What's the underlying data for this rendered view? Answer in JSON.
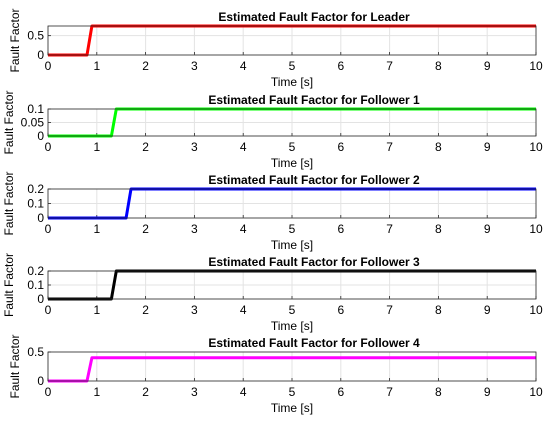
{
  "chart_data": [
    {
      "type": "line",
      "title": "Estimated Fault Factor for Leader",
      "xlabel": "Time [s]",
      "ylabel": "Fault Factor",
      "xlim": [
        0,
        10
      ],
      "ylim": [
        0,
        0.75
      ],
      "xticks": [
        "0",
        "1",
        "2",
        "3",
        "4",
        "5",
        "6",
        "7",
        "8",
        "9",
        "10"
      ],
      "yticks": [
        "0",
        "0.5"
      ],
      "ytick_values": [
        0,
        0.5
      ],
      "grid": true,
      "series": [
        {
          "color": "#ff0000",
          "x": [
            0,
            0.8,
            0.9,
            10
          ],
          "y": [
            0,
            0,
            0.75,
            0.75
          ]
        }
      ]
    },
    {
      "type": "line",
      "title": "Estimated Fault Factor for Follower 1",
      "xlabel": "Time [s]",
      "ylabel": "Fault Factor",
      "xlim": [
        0,
        10
      ],
      "ylim": [
        0,
        0.1
      ],
      "xticks": [
        "0",
        "1",
        "2",
        "3",
        "4",
        "5",
        "6",
        "7",
        "8",
        "9",
        "10"
      ],
      "yticks": [
        "0",
        "0.05",
        "0.1"
      ],
      "ytick_values": [
        0,
        0.05,
        0.1
      ],
      "grid": true,
      "series": [
        {
          "color": "#00ff00",
          "x": [
            0,
            1.3,
            1.4,
            10
          ],
          "y": [
            0,
            0,
            0.1,
            0.1
          ]
        }
      ]
    },
    {
      "type": "line",
      "title": "Estimated Fault Factor for Follower 2",
      "xlabel": "Time [s]",
      "ylabel": "Fault Factor",
      "xlim": [
        0,
        10
      ],
      "ylim": [
        0,
        0.2
      ],
      "xticks": [
        "0",
        "1",
        "2",
        "3",
        "4",
        "5",
        "6",
        "7",
        "8",
        "9",
        "10"
      ],
      "yticks": [
        "0",
        "0.1",
        "0.2"
      ],
      "ytick_values": [
        0,
        0.1,
        0.2
      ],
      "grid": true,
      "series": [
        {
          "color": "#0000ff",
          "x": [
            0,
            1.6,
            1.7,
            10
          ],
          "y": [
            0,
            0,
            0.2,
            0.2
          ]
        }
      ]
    },
    {
      "type": "line",
      "title": "Estimated Fault Factor for Follower 3",
      "xlabel": "Time [s]",
      "ylabel": "Fault Factor",
      "xlim": [
        0,
        10
      ],
      "ylim": [
        0,
        0.2
      ],
      "xticks": [
        "0",
        "1",
        "2",
        "3",
        "4",
        "5",
        "6",
        "7",
        "8",
        "9",
        "10"
      ],
      "yticks": [
        "0",
        "0.1",
        "0.2"
      ],
      "ytick_values": [
        0,
        0.1,
        0.2
      ],
      "grid": true,
      "series": [
        {
          "color": "#000000",
          "x": [
            0,
            1.3,
            1.4,
            10
          ],
          "y": [
            0,
            0,
            0.2,
            0.2
          ]
        }
      ]
    },
    {
      "type": "line",
      "title": "Estimated Fault Factor for Follower 4",
      "xlabel": "Time [s]",
      "ylabel": "Fault Factor",
      "xlim": [
        0,
        10
      ],
      "ylim": [
        0,
        0.5
      ],
      "xticks": [
        "0",
        "1",
        "2",
        "3",
        "4",
        "5",
        "6",
        "7",
        "8",
        "9",
        "10"
      ],
      "yticks": [
        "0",
        "0.5"
      ],
      "ytick_values": [
        0,
        0.5
      ],
      "grid": true,
      "series": [
        {
          "color": "#ff00ff",
          "x": [
            0,
            0.8,
            0.9,
            10
          ],
          "y": [
            0,
            0,
            0.4,
            0.4
          ]
        }
      ]
    }
  ]
}
